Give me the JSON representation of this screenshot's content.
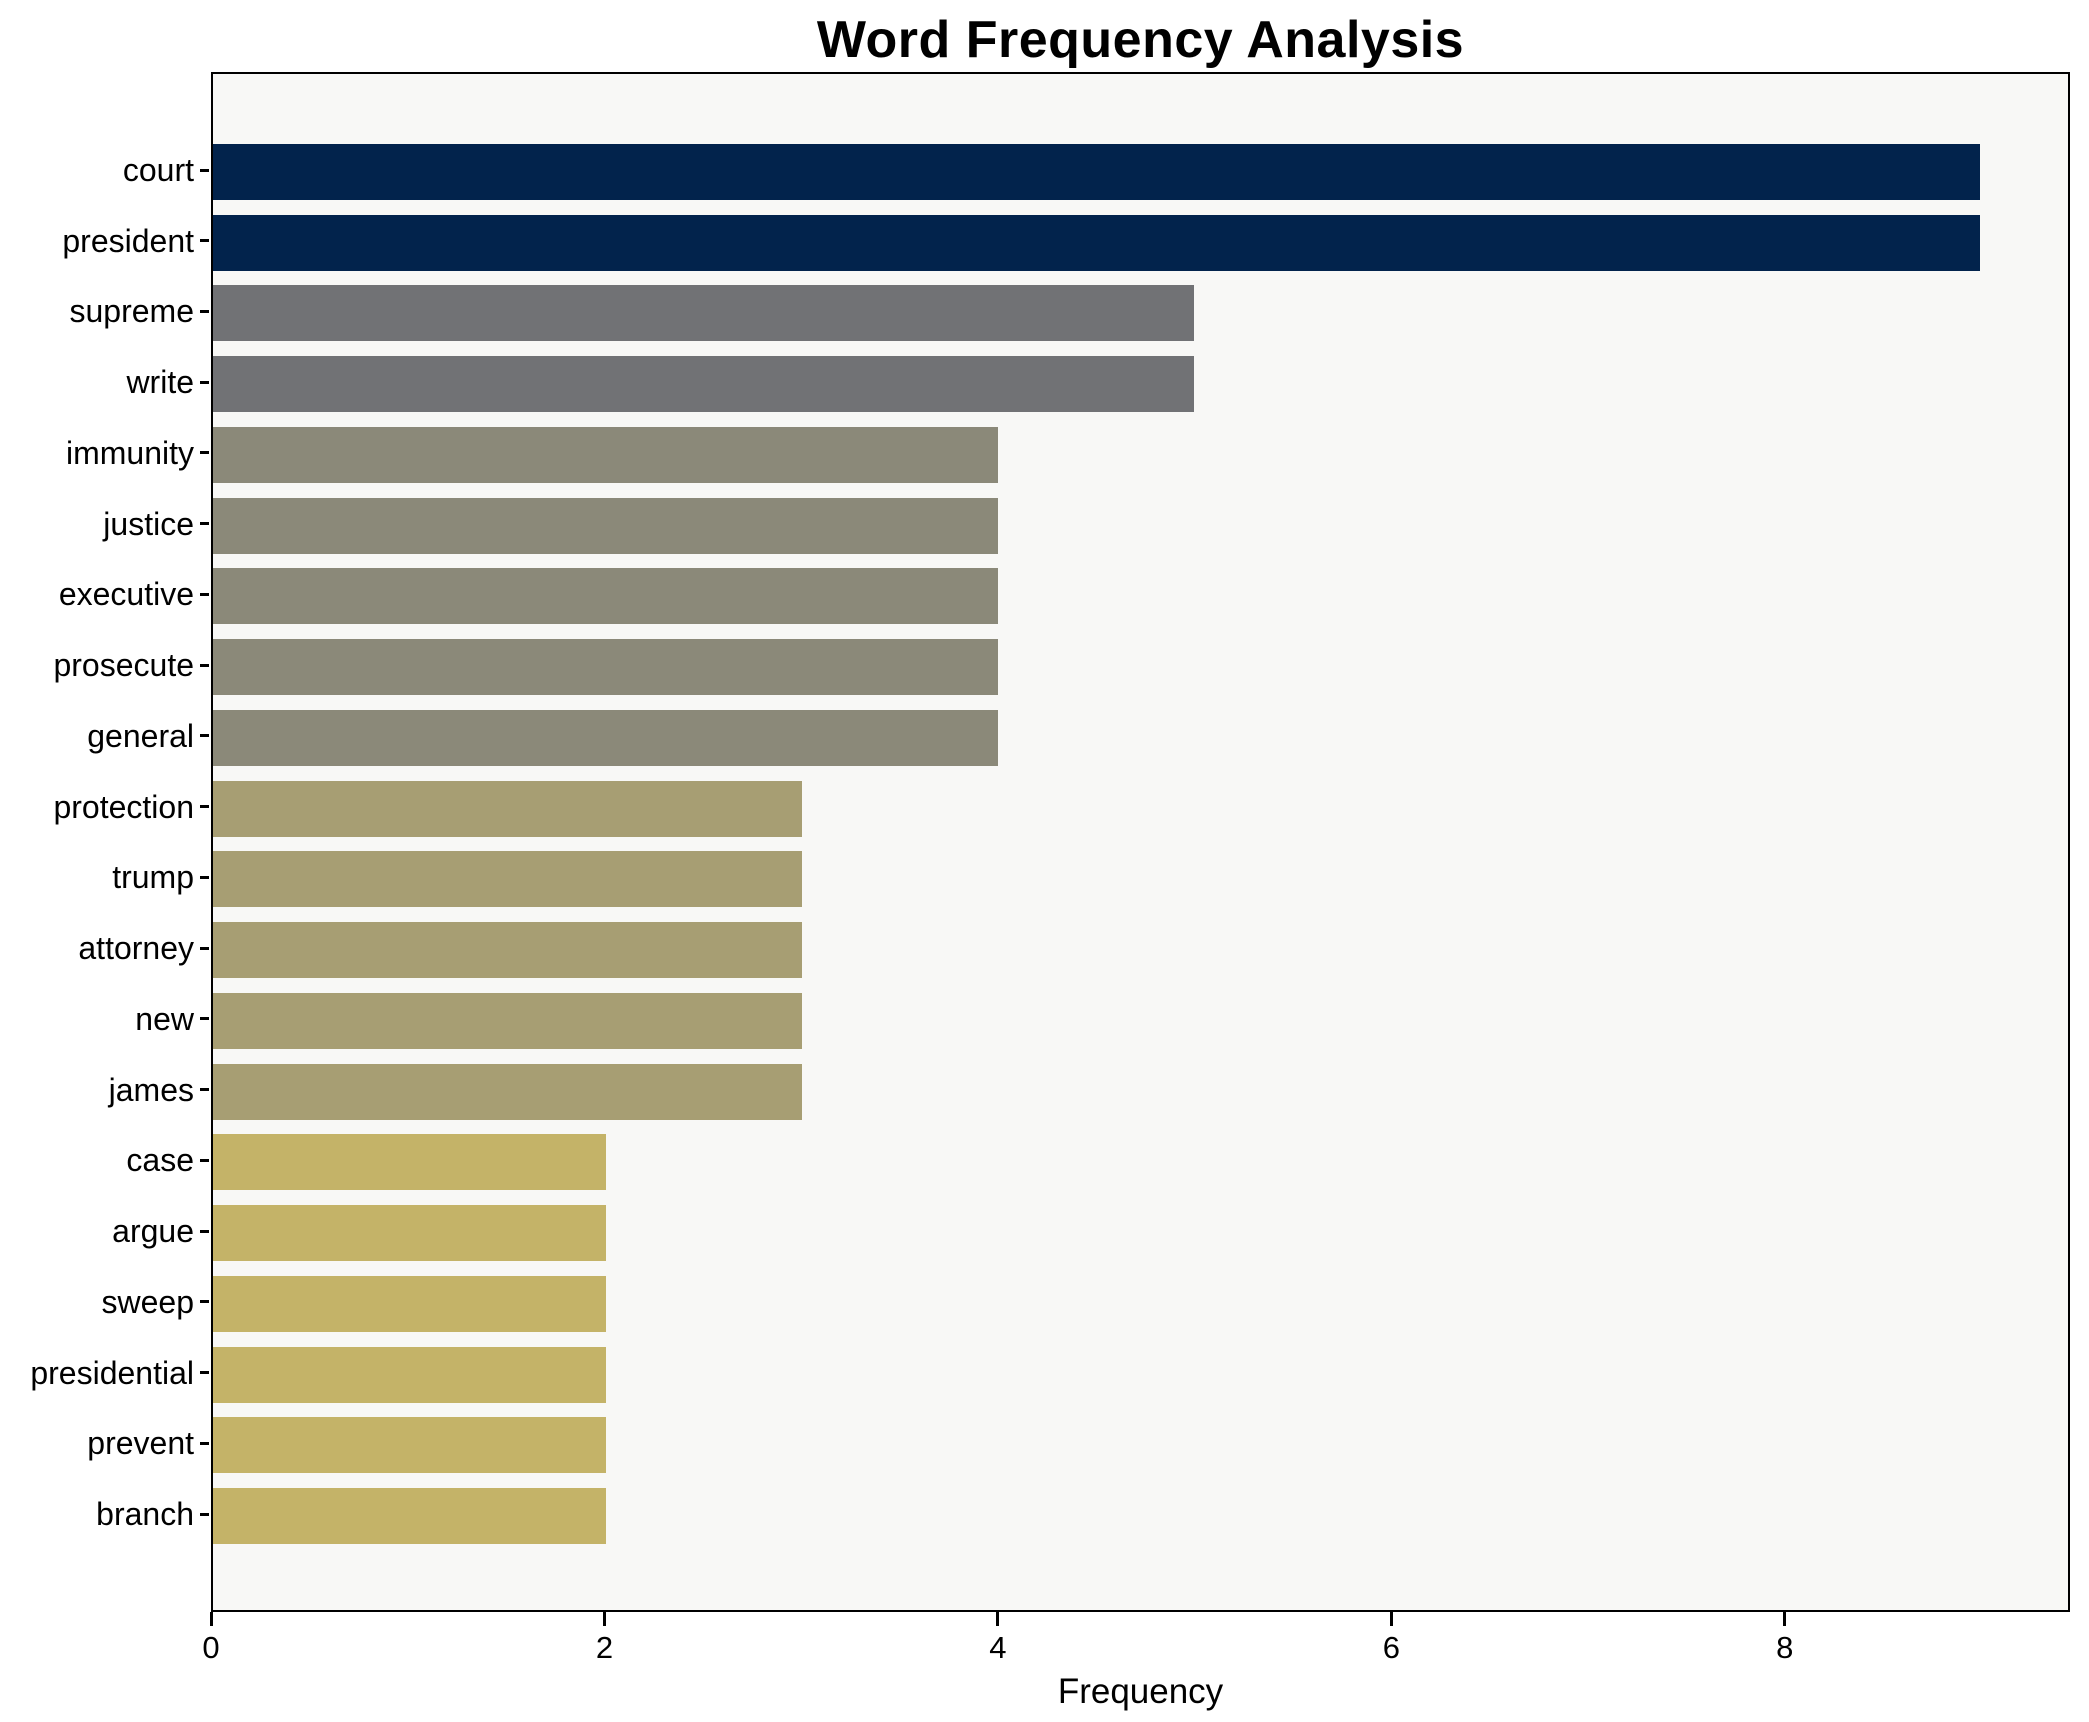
{
  "title": "Word Frequency Analysis",
  "chart_data": {
    "type": "bar",
    "orientation": "horizontal",
    "title": "Word Frequency Analysis",
    "xlabel": "Frequency",
    "ylabel": "",
    "categories": [
      "court",
      "president",
      "supreme",
      "write",
      "immunity",
      "justice",
      "executive",
      "prosecute",
      "general",
      "protection",
      "trump",
      "attorney",
      "new",
      "james",
      "case",
      "argue",
      "sweep",
      "presidential",
      "prevent",
      "branch"
    ],
    "values": [
      9,
      9,
      5,
      5,
      4,
      4,
      4,
      4,
      4,
      3,
      3,
      3,
      3,
      3,
      2,
      2,
      2,
      2,
      2,
      2
    ],
    "bar_colors": [
      "#02234c",
      "#02234c",
      "#717275",
      "#717275",
      "#8b8979",
      "#8b8979",
      "#8b8979",
      "#8b8979",
      "#8b8979",
      "#a79e73",
      "#a79e73",
      "#a79e73",
      "#a79e73",
      "#a79e73",
      "#c4b368",
      "#c4b368",
      "#c4b368",
      "#c4b368",
      "#c4b368",
      "#c4b368"
    ],
    "xlim": [
      0,
      9.45
    ],
    "xticks": [
      0,
      2,
      4,
      6,
      8
    ],
    "grid": false,
    "legend": null
  },
  "colors": {
    "figure_background": "#ffffff",
    "plot_background": "#f8f8f6",
    "axis": "#000000",
    "text": "#000000",
    "navy": "#02234c",
    "gray": "#717275",
    "olive": "#8b8979",
    "khaki": "#a79e73",
    "gold": "#c4b368"
  }
}
